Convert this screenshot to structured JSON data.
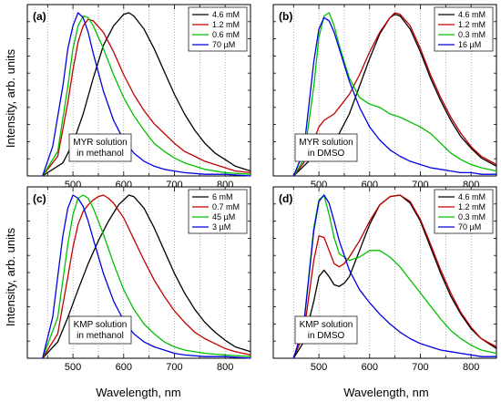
{
  "figure": {
    "ylabel": "Intensity, arb. units",
    "xlabel": "Wavelength, nm"
  },
  "chart_data": [
    {
      "type": "line",
      "panel_label": "(a)",
      "annotation": [
        "MYR solution",
        "in methanol"
      ],
      "xlabel": "Wavelength, nm",
      "ylabel": "Intensity, arb. units",
      "xlim": [
        410,
        850
      ],
      "ylim": [
        0,
        1.05
      ],
      "x_ticks": [
        500,
        600,
        700,
        800
      ],
      "grid_x": [
        450,
        500,
        550,
        600,
        650,
        700,
        750,
        800
      ],
      "legend_position": "top-right",
      "series": [
        {
          "name": "4.6 mM",
          "color": "#000000",
          "x": [
            440,
            480,
            500,
            520,
            540,
            560,
            580,
            600,
            610,
            620,
            640,
            660,
            680,
            700,
            720,
            740,
            760,
            780,
            800,
            820,
            850
          ],
          "y": [
            0.0,
            0.08,
            0.2,
            0.38,
            0.6,
            0.8,
            0.92,
            0.99,
            1.0,
            0.98,
            0.9,
            0.78,
            0.64,
            0.5,
            0.38,
            0.28,
            0.2,
            0.14,
            0.1,
            0.06,
            0.03
          ]
        },
        {
          "name": "1.2 mM",
          "color": "#c00000",
          "x": [
            440,
            470,
            490,
            500,
            510,
            520,
            530,
            540,
            560,
            580,
            600,
            620,
            640,
            660,
            680,
            700,
            720,
            740,
            760,
            780,
            800,
            820,
            850
          ],
          "y": [
            0.0,
            0.12,
            0.45,
            0.65,
            0.82,
            0.92,
            0.96,
            0.95,
            0.88,
            0.76,
            0.62,
            0.5,
            0.4,
            0.32,
            0.26,
            0.2,
            0.15,
            0.12,
            0.09,
            0.07,
            0.05,
            0.03,
            0.02
          ]
        },
        {
          "name": "0.6 mM",
          "color": "#00c000",
          "x": [
            440,
            470,
            490,
            500,
            510,
            520,
            530,
            540,
            560,
            580,
            600,
            620,
            640,
            660,
            680,
            700,
            720,
            740,
            760,
            800,
            850
          ],
          "y": [
            0.0,
            0.15,
            0.55,
            0.78,
            0.92,
            0.98,
            0.97,
            0.92,
            0.78,
            0.62,
            0.48,
            0.37,
            0.28,
            0.2,
            0.15,
            0.11,
            0.08,
            0.06,
            0.04,
            0.02,
            0.01
          ]
        },
        {
          "name": "70 µM",
          "color": "#0000e0",
          "x": [
            440,
            460,
            480,
            490,
            500,
            510,
            520,
            530,
            540,
            560,
            580,
            600,
            620,
            640,
            660,
            680,
            700,
            720,
            760,
            800,
            850
          ],
          "y": [
            0.0,
            0.18,
            0.55,
            0.78,
            0.92,
            1.0,
            0.97,
            0.88,
            0.75,
            0.52,
            0.34,
            0.22,
            0.14,
            0.09,
            0.06,
            0.04,
            0.03,
            0.02,
            0.01,
            0.01,
            0.0
          ]
        }
      ]
    },
    {
      "type": "line",
      "panel_label": "(b)",
      "annotation": [
        "MYR solution",
        "in DMSO"
      ],
      "xlabel": "Wavelength, nm",
      "ylabel": "Intensity, arb. units",
      "xlim": [
        410,
        850
      ],
      "ylim": [
        0,
        1.05
      ],
      "x_ticks": [
        500,
        600,
        700,
        800
      ],
      "grid_x": [
        450,
        500,
        550,
        600,
        650,
        700,
        750,
        800
      ],
      "legend_position": "top-right",
      "series": [
        {
          "name": "4.6 mM",
          "color": "#000000",
          "x": [
            450,
            470,
            490,
            500,
            510,
            520,
            530,
            540,
            560,
            580,
            600,
            620,
            640,
            650,
            660,
            680,
            700,
            720,
            740,
            760,
            780,
            800,
            820,
            850
          ],
          "y": [
            0.0,
            0.06,
            0.12,
            0.16,
            0.18,
            0.2,
            0.22,
            0.26,
            0.38,
            0.55,
            0.72,
            0.87,
            0.97,
            0.99,
            0.98,
            0.9,
            0.76,
            0.6,
            0.46,
            0.34,
            0.24,
            0.17,
            0.11,
            0.06
          ]
        },
        {
          "name": "1.2 mM",
          "color": "#c00000",
          "x": [
            450,
            470,
            490,
            500,
            510,
            520,
            530,
            540,
            560,
            580,
            600,
            620,
            640,
            650,
            660,
            680,
            700,
            720,
            740,
            760,
            780,
            800,
            820,
            850
          ],
          "y": [
            0.0,
            0.08,
            0.22,
            0.3,
            0.34,
            0.36,
            0.38,
            0.42,
            0.5,
            0.62,
            0.76,
            0.88,
            0.97,
            1.0,
            0.99,
            0.92,
            0.78,
            0.62,
            0.48,
            0.36,
            0.26,
            0.18,
            0.12,
            0.07
          ]
        },
        {
          "name": "0.3 mM",
          "color": "#00c000",
          "x": [
            450,
            470,
            490,
            500,
            510,
            520,
            530,
            540,
            560,
            580,
            600,
            620,
            640,
            660,
            680,
            700,
            720,
            740,
            760,
            780,
            800,
            820,
            850
          ],
          "y": [
            0.0,
            0.1,
            0.55,
            0.85,
            0.98,
            1.0,
            0.92,
            0.8,
            0.6,
            0.48,
            0.44,
            0.42,
            0.38,
            0.36,
            0.33,
            0.3,
            0.26,
            0.2,
            0.14,
            0.1,
            0.07,
            0.05,
            0.03
          ]
        },
        {
          "name": "16 µM",
          "color": "#0000e0",
          "x": [
            450,
            470,
            490,
            500,
            510,
            520,
            530,
            540,
            560,
            580,
            600,
            620,
            640,
            660,
            680,
            700,
            720,
            740,
            760,
            780,
            800,
            820,
            850
          ],
          "y": [
            0.0,
            0.15,
            0.7,
            0.9,
            0.97,
            0.95,
            0.88,
            0.78,
            0.58,
            0.42,
            0.3,
            0.22,
            0.16,
            0.12,
            0.09,
            0.07,
            0.05,
            0.04,
            0.03,
            0.02,
            0.02,
            0.01,
            0.01
          ]
        }
      ]
    },
    {
      "type": "line",
      "panel_label": "(c)",
      "annotation": [
        "KMP solution",
        "in methanol"
      ],
      "xlabel": "Wavelength, nm",
      "ylabel": "Intensity, arb. units",
      "xlim": [
        410,
        850
      ],
      "ylim": [
        0,
        1.05
      ],
      "x_ticks": [
        500,
        600,
        700,
        800
      ],
      "grid_x": [
        450,
        500,
        550,
        600,
        650,
        700,
        750,
        800
      ],
      "legend_position": "top-right",
      "series": [
        {
          "name": "6 mM",
          "color": "#000000",
          "x": [
            440,
            470,
            490,
            510,
            530,
            550,
            570,
            590,
            610,
            620,
            640,
            660,
            680,
            700,
            720,
            740,
            760,
            780,
            800,
            820,
            850
          ],
          "y": [
            0.0,
            0.1,
            0.25,
            0.42,
            0.58,
            0.72,
            0.84,
            0.94,
            1.0,
            0.99,
            0.92,
            0.8,
            0.66,
            0.52,
            0.4,
            0.3,
            0.22,
            0.16,
            0.11,
            0.07,
            0.04
          ]
        },
        {
          "name": "0.7 mM",
          "color": "#c00000",
          "x": [
            440,
            470,
            490,
            500,
            510,
            520,
            530,
            540,
            550,
            560,
            570,
            580,
            600,
            620,
            640,
            660,
            680,
            700,
            720,
            740,
            760,
            780,
            800,
            820,
            850
          ],
          "y": [
            0.0,
            0.15,
            0.5,
            0.68,
            0.82,
            0.9,
            0.94,
            0.97,
            0.99,
            1.0,
            0.98,
            0.95,
            0.86,
            0.73,
            0.6,
            0.48,
            0.38,
            0.29,
            0.22,
            0.16,
            0.12,
            0.09,
            0.06,
            0.04,
            0.02
          ]
        },
        {
          "name": "45 µM",
          "color": "#00c000",
          "x": [
            440,
            470,
            490,
            500,
            510,
            520,
            530,
            540,
            560,
            580,
            600,
            620,
            640,
            660,
            680,
            700,
            720,
            760,
            800,
            850
          ],
          "y": [
            0.0,
            0.25,
            0.7,
            0.88,
            0.98,
            1.0,
            0.98,
            0.92,
            0.76,
            0.58,
            0.42,
            0.3,
            0.21,
            0.15,
            0.1,
            0.07,
            0.05,
            0.03,
            0.02,
            0.01
          ]
        },
        {
          "name": "3 µM",
          "color": "#0000e0",
          "x": [
            440,
            460,
            480,
            490,
            500,
            510,
            520,
            530,
            540,
            560,
            580,
            600,
            620,
            640,
            660,
            680,
            700,
            720,
            760,
            800,
            850
          ],
          "y": [
            0.0,
            0.25,
            0.75,
            0.92,
            1.0,
            0.98,
            0.93,
            0.84,
            0.73,
            0.52,
            0.35,
            0.23,
            0.15,
            0.1,
            0.07,
            0.05,
            0.03,
            0.02,
            0.01,
            0.01,
            0.0
          ]
        }
      ]
    },
    {
      "type": "line",
      "panel_label": "(d)",
      "annotation": [
        "KMP solution",
        "in DMSO"
      ],
      "xlabel": "Wavelength, nm",
      "ylabel": "Intensity, arb. units",
      "xlim": [
        410,
        850
      ],
      "ylim": [
        0,
        1.05
      ],
      "x_ticks": [
        500,
        600,
        700,
        800
      ],
      "grid_x": [
        450,
        500,
        550,
        600,
        650,
        700,
        750,
        800
      ],
      "legend_position": "top-right",
      "series": [
        {
          "name": "4.6 mM",
          "color": "#000000",
          "x": [
            450,
            470,
            490,
            500,
            510,
            520,
            530,
            540,
            550,
            560,
            580,
            600,
            620,
            640,
            660,
            680,
            700,
            720,
            740,
            760,
            780,
            800,
            820,
            850
          ],
          "y": [
            0.0,
            0.1,
            0.35,
            0.5,
            0.54,
            0.5,
            0.45,
            0.44,
            0.46,
            0.5,
            0.66,
            0.82,
            0.94,
            0.99,
            1.0,
            0.95,
            0.84,
            0.68,
            0.52,
            0.38,
            0.27,
            0.18,
            0.12,
            0.06
          ]
        },
        {
          "name": "1.2 mM",
          "color": "#c00000",
          "x": [
            450,
            470,
            490,
            500,
            510,
            520,
            530,
            540,
            550,
            560,
            580,
            600,
            620,
            640,
            660,
            680,
            700,
            720,
            740,
            760,
            780,
            800,
            820,
            850
          ],
          "y": [
            0.0,
            0.15,
            0.6,
            0.75,
            0.74,
            0.66,
            0.58,
            0.56,
            0.58,
            0.62,
            0.72,
            0.84,
            0.94,
            0.99,
            1.0,
            0.96,
            0.85,
            0.7,
            0.54,
            0.4,
            0.28,
            0.19,
            0.12,
            0.07
          ]
        },
        {
          "name": "0.3 mM",
          "color": "#00c000",
          "x": [
            450,
            470,
            490,
            500,
            510,
            520,
            530,
            540,
            560,
            580,
            600,
            620,
            640,
            660,
            680,
            700,
            720,
            740,
            760,
            780,
            800,
            820,
            850
          ],
          "y": [
            0.0,
            0.2,
            0.8,
            0.97,
            1.0,
            0.88,
            0.74,
            0.64,
            0.6,
            0.62,
            0.66,
            0.66,
            0.62,
            0.56,
            0.48,
            0.4,
            0.32,
            0.24,
            0.17,
            0.12,
            0.08,
            0.05,
            0.03
          ]
        },
        {
          "name": "70 µM",
          "color": "#0000e0",
          "x": [
            450,
            470,
            490,
            500,
            510,
            520,
            530,
            540,
            560,
            580,
            600,
            620,
            640,
            660,
            680,
            700,
            720,
            740,
            760,
            780,
            800,
            820,
            850
          ],
          "y": [
            0.0,
            0.2,
            0.78,
            0.96,
            1.0,
            0.95,
            0.84,
            0.72,
            0.54,
            0.42,
            0.34,
            0.27,
            0.21,
            0.16,
            0.12,
            0.09,
            0.07,
            0.05,
            0.04,
            0.03,
            0.02,
            0.01,
            0.01
          ]
        }
      ]
    }
  ]
}
